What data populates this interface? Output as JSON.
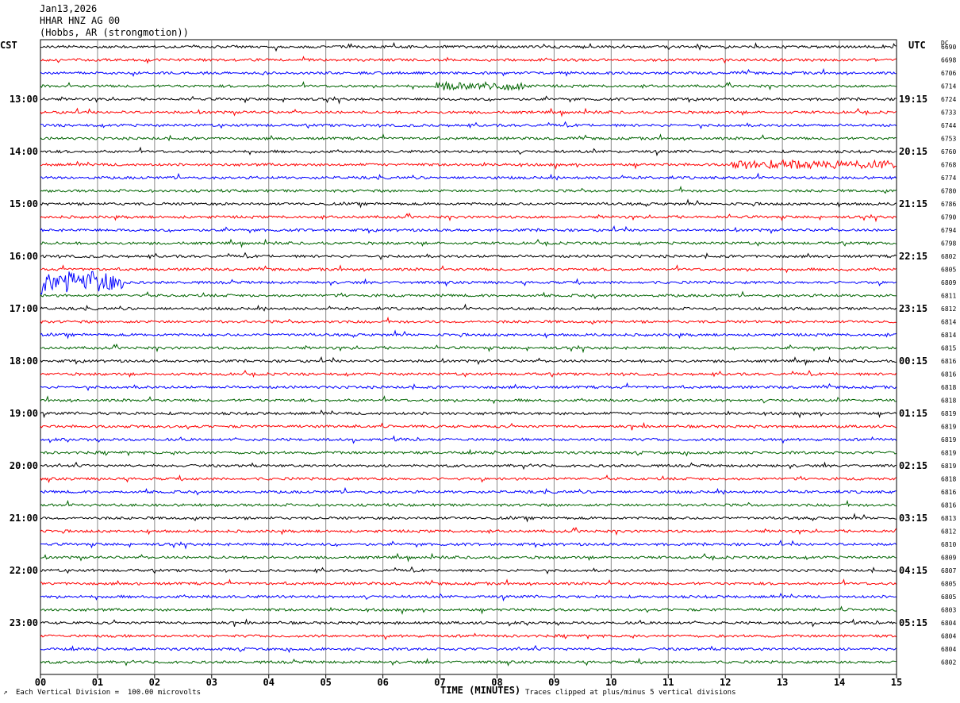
{
  "header": {
    "date": "Jan13,2026",
    "station": "HHAR HNZ AG 00",
    "location": "(Hobbs, AR (strongmotion))"
  },
  "left_zone_label": "CST",
  "right_zone_label": "UTC",
  "dc_label": "DC",
  "footer": {
    "left_note": "Each Vertical Division =  100.00 microvolts",
    "right_note": "Traces clipped at plus/minus 5 vertical divisions"
  },
  "colors": {
    "black": "#000000",
    "red": "#ff0000",
    "blue": "#0000ff",
    "green": "#006400",
    "grid": "#888888"
  },
  "chart_data": {
    "type": "line",
    "title": "HHAR HNZ AG 00",
    "xlabel": "TIME (MINUTES)",
    "xlim": [
      0,
      15
    ],
    "x_ticks": [
      "00",
      "01",
      "02",
      "03",
      "04",
      "05",
      "06",
      "07",
      "08",
      "09",
      "10",
      "11",
      "12",
      "13",
      "14",
      "15"
    ],
    "left_time_labels": [
      "13:00",
      "14:00",
      "15:00",
      "16:00",
      "17:00",
      "18:00",
      "19:00",
      "20:00",
      "21:00",
      "22:00",
      "23:00"
    ],
    "right_time_labels": [
      "19:15",
      "20:15",
      "21:15",
      "22:15",
      "23:15",
      "00:15",
      "01:15",
      "02:15",
      "03:15",
      "04:15",
      "05:15"
    ],
    "trace_color_cycle": [
      "black",
      "red",
      "blue",
      "green"
    ],
    "dc_offsets": [
      6690,
      6698,
      6706,
      6714,
      6724,
      6733,
      6744,
      6753,
      6760,
      6768,
      6774,
      6780,
      6786,
      6790,
      6794,
      6798,
      6802,
      6805,
      6809,
      6811,
      6812,
      6814,
      6814,
      6815,
      6816,
      6816,
      6818,
      6818,
      6819,
      6819,
      6819,
      6819,
      6819,
      6818,
      6816,
      6816,
      6813,
      6812,
      6810,
      6809,
      6807,
      6805,
      6805,
      6803,
      6804,
      6804,
      6804,
      6802
    ],
    "events": [
      {
        "trace": 18,
        "start_min": 0.0,
        "end_min": 1.45,
        "note": "large blue burst"
      },
      {
        "trace": 9,
        "start_min": 12.1,
        "end_min": 15.0,
        "note": "red elevated noise"
      },
      {
        "trace": 3,
        "start_min": 6.9,
        "end_min": 8.5,
        "note": "green elevated noise"
      }
    ]
  }
}
